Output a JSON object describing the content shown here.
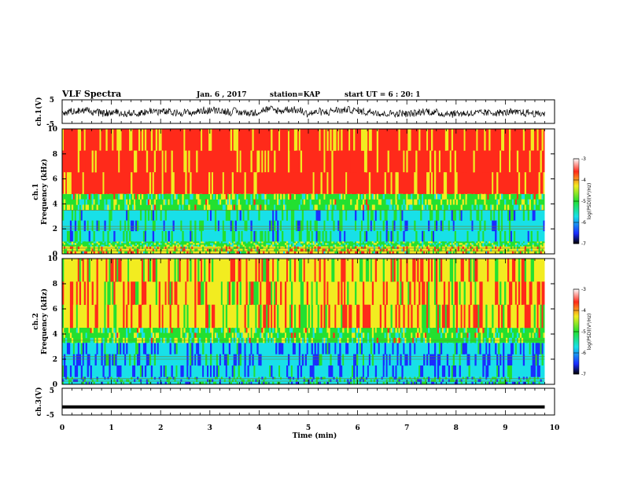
{
  "header": {
    "title": "VLF Spectra",
    "date": "Jan. 6 , 2017",
    "station": "station=KAP",
    "start": "start UT =  6 : 20: 1"
  },
  "chart_data": [
    {
      "type": "line",
      "panel": "ch1-waveform",
      "ylabel": "ch.1(V)",
      "ylim": [
        -5,
        5
      ],
      "yticks": [
        "5",
        "-5"
      ],
      "xlim": [
        0,
        10
      ],
      "series": [
        {
          "values_range": [
            -3.5,
            2.5
          ],
          "color": "#000000"
        }
      ]
    },
    {
      "type": "heatmap",
      "panel": "ch1-spectrogram",
      "ylabel": "ch.1\nFrequency (kHz)",
      "ylim": [
        0,
        10
      ],
      "yticks": [
        "0",
        "2",
        "4",
        "6",
        "8",
        "10"
      ],
      "xlim": [
        0,
        10
      ],
      "bands": [
        {
          "from": 0.0,
          "to": 0.6,
          "level": -4.3
        },
        {
          "from": 0.6,
          "to": 1.0,
          "level": -4.8
        },
        {
          "from": 1.0,
          "to": 3.5,
          "level": -5.3
        },
        {
          "from": 3.5,
          "to": 4.8,
          "level": -4.6
        },
        {
          "from": 4.8,
          "to": 10.0,
          "level": -3.5
        }
      ],
      "colorbar": {
        "label": "log(PSD)(V²/Hz)",
        "min": -7,
        "max": -3,
        "ticks": [
          "-3",
          "-4",
          "-5",
          "-6",
          "-7"
        ]
      }
    },
    {
      "type": "heatmap",
      "panel": "ch2-spectrogram",
      "ylabel": "ch.2\nFrequency (kHz)",
      "ylim": [
        0,
        10
      ],
      "yticks": [
        "0",
        "2",
        "4",
        "6",
        "8",
        "10"
      ],
      "xlim": [
        0,
        10
      ],
      "bands": [
        {
          "from": 0.0,
          "to": 0.6,
          "level": -5.4
        },
        {
          "from": 0.6,
          "to": 3.3,
          "level": -5.8
        },
        {
          "from": 3.3,
          "to": 4.5,
          "level": -4.6
        },
        {
          "from": 4.5,
          "to": 10.0,
          "level": -3.9
        }
      ],
      "colorbar": {
        "label": "log(PSD)(V²/Hz)",
        "min": -7,
        "max": -3,
        "ticks": [
          "-3",
          "-4",
          "-5",
          "-6",
          "-7"
        ]
      }
    },
    {
      "type": "line",
      "panel": "ch3-waveform",
      "ylabel": "ch.3(V)",
      "ylim": [
        -5,
        5
      ],
      "yticks": [
        "5",
        "0",
        "-5"
      ],
      "xlim": [
        0,
        10
      ],
      "series": [
        {
          "values": [
            -2,
            -2
          ],
          "x": [
            0,
            9.8
          ],
          "color": "#000000"
        }
      ]
    }
  ],
  "xaxis": {
    "label": "Time (min)",
    "ticks": [
      "0",
      "1",
      "2",
      "3",
      "4",
      "5",
      "6",
      "7",
      "8",
      "9",
      "10"
    ]
  },
  "colors": {
    "red": "#ff2a1a",
    "yellow": "#f2ec20",
    "green": "#22e030",
    "cyan": "#18e0e8",
    "blue": "#1a2cff"
  }
}
